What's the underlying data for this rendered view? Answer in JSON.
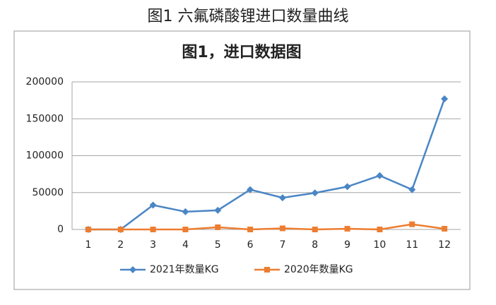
{
  "header": {
    "title": "图1 六氟磷酸锂进口数量曲线"
  },
  "chart_data": {
    "type": "line",
    "title": "图1，进口数据图",
    "categories": [
      "1",
      "2",
      "3",
      "4",
      "5",
      "6",
      "7",
      "8",
      "9",
      "10",
      "11",
      "12"
    ],
    "series": [
      {
        "name": "2021年数量KG",
        "color": "#4a86c5",
        "marker": "diamond",
        "values": [
          0,
          0,
          33000,
          24000,
          26000,
          54000,
          43000,
          49500,
          58000,
          73000,
          54000,
          177000
        ]
      },
      {
        "name": "2020年数量KG",
        "color": "#ed7d31",
        "marker": "square",
        "values": [
          0,
          0,
          0,
          0,
          3000,
          0,
          1500,
          0,
          1000,
          0,
          7000,
          1000
        ]
      }
    ],
    "ylim": [
      0,
      200000
    ],
    "yticks": [
      0,
      50000,
      100000,
      150000,
      200000
    ],
    "grid": true,
    "legend": "bottom"
  }
}
